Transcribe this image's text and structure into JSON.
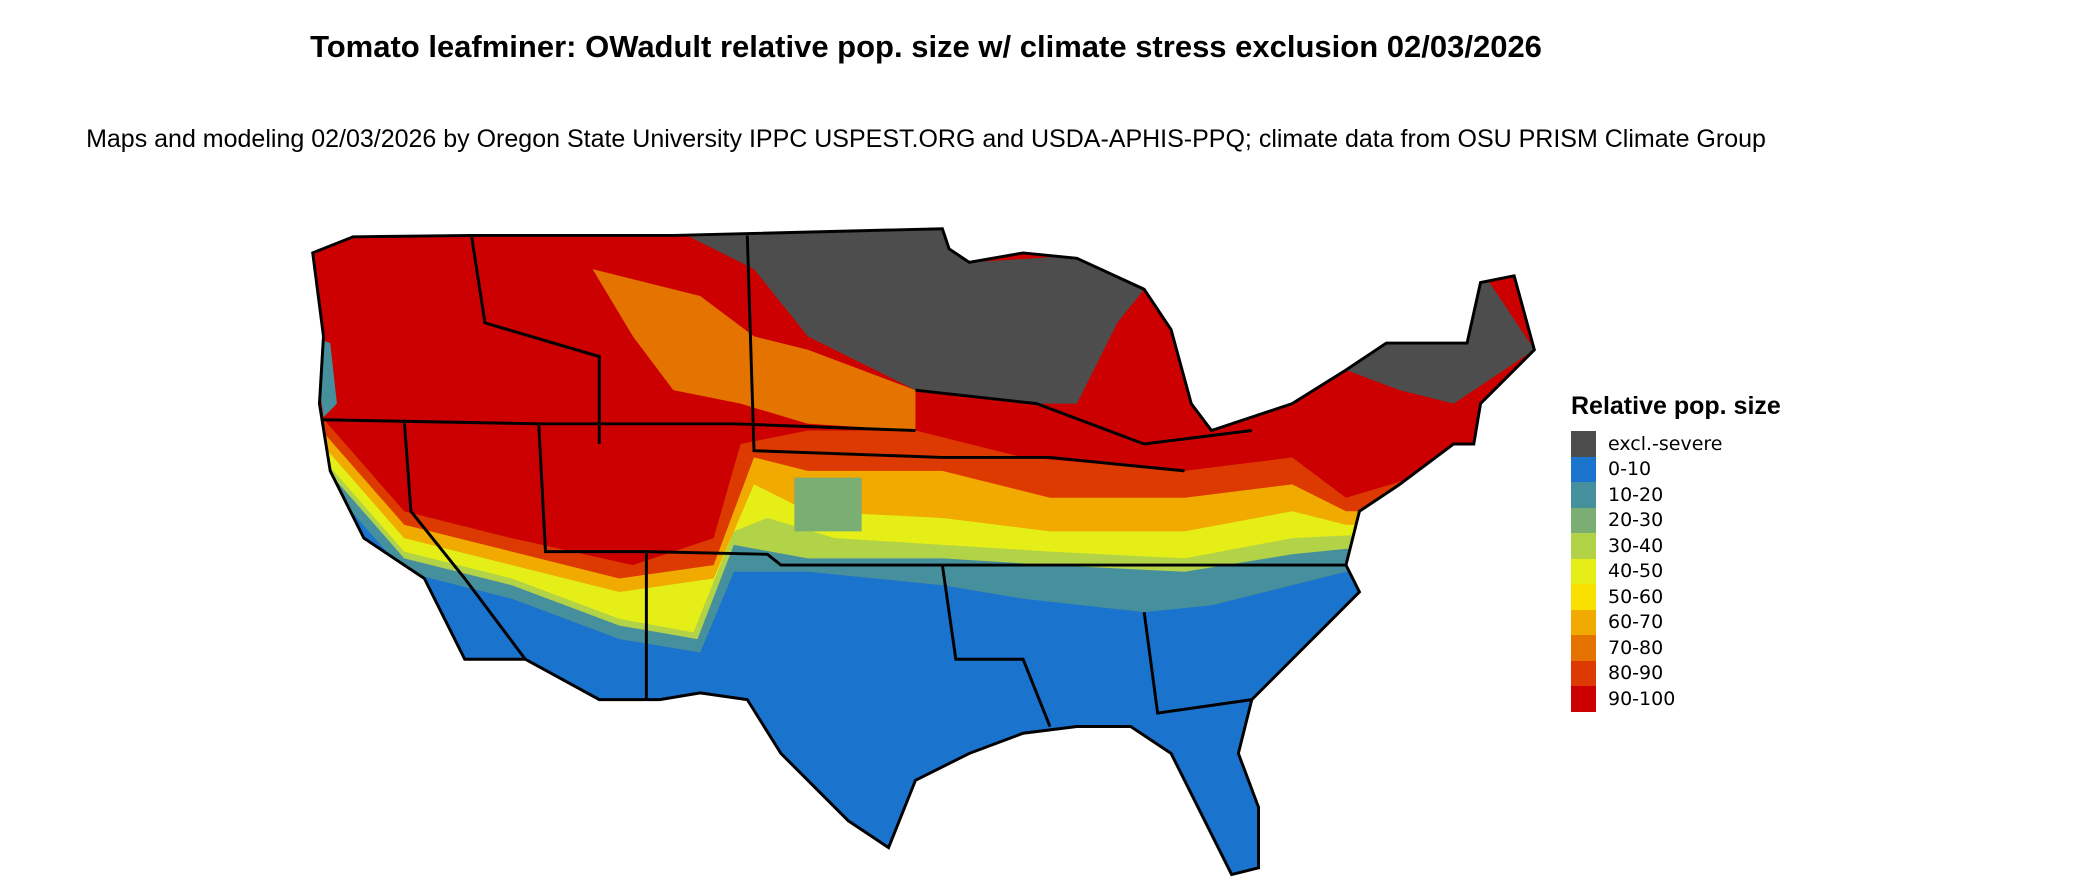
{
  "title": "Tomato leafminer: OWadult relative pop. size w/ climate stress exclusion 02/03/2026",
  "subtitle": "Maps and modeling 02/03/2026 by Oregon State University IPPC USPEST.ORG and USDA-APHIS-PPQ; climate data from OSU PRISM Climate Group",
  "legend": {
    "title": "Relative pop. size",
    "items": [
      {
        "label": "excl.-severe",
        "color": "#4d4d4d"
      },
      {
        "label": "0-10",
        "color": "#1a73cc"
      },
      {
        "label": "10-20",
        "color": "#468f9c"
      },
      {
        "label": "20-30",
        "color": "#7bae72"
      },
      {
        "label": "30-40",
        "color": "#b2d247"
      },
      {
        "label": "40-50",
        "color": "#e5ef17"
      },
      {
        "label": "50-60",
        "color": "#fae000"
      },
      {
        "label": "60-70",
        "color": "#f0aa00"
      },
      {
        "label": "70-80",
        "color": "#e57300"
      },
      {
        "label": "80-90",
        "color": "#dc3a00"
      },
      {
        "label": "90-100",
        "color": "#cc0000"
      }
    ]
  }
}
